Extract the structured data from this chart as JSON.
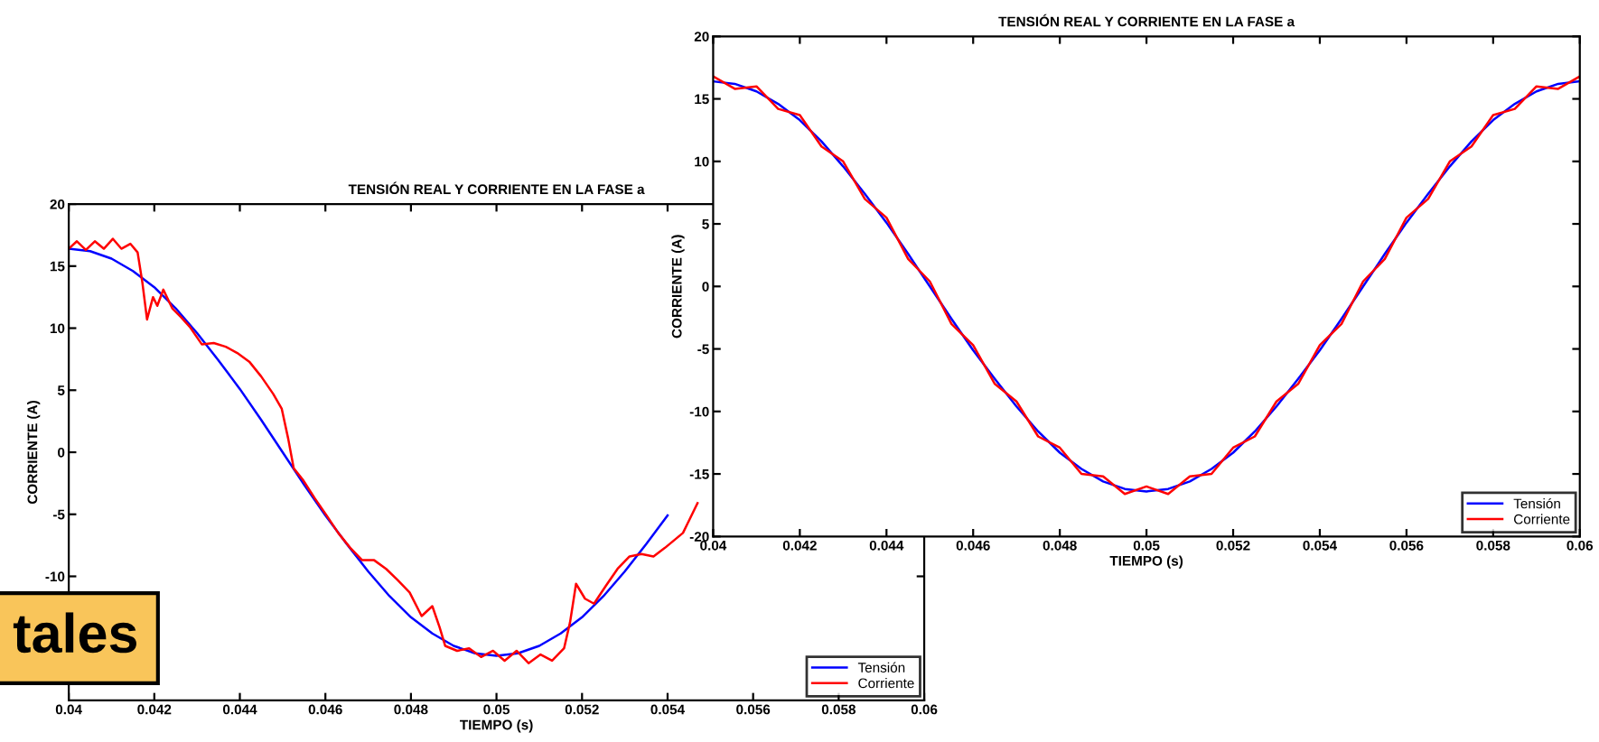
{
  "chart_data": [
    {
      "type": "line",
      "title": "TENSIÓN REAL Y CORRIENTE EN LA FASE a",
      "xlabel": "TIEMPO (s)",
      "ylabel": "CORRIENTE (A)",
      "xlim": [
        0.04,
        0.06
      ],
      "xticks": [
        0.04,
        0.042,
        0.044,
        0.046,
        0.048,
        0.05,
        0.052,
        0.054,
        0.056,
        0.058,
        0.06
      ],
      "ylim": [
        -20,
        20
      ],
      "yticks": [
        -10,
        -5,
        0,
        5,
        10,
        15,
        20
      ],
      "legend": "bottom right",
      "grid": false,
      "annotations": [
        "tales"
      ],
      "series": [
        {
          "name": "Tensión",
          "color": "#0000ff",
          "x": [
            0.04,
            0.0405,
            0.041,
            0.0415,
            0.042,
            0.0425,
            0.043,
            0.0435,
            0.044,
            0.0445,
            0.045,
            0.0455,
            0.046,
            0.0465,
            0.047,
            0.0475,
            0.048,
            0.0485,
            0.049,
            0.0495,
            0.05,
            0.0505,
            0.051,
            0.0515,
            0.052,
            0.0525,
            0.053,
            0.0535,
            0.054
          ],
          "values": [
            16.4,
            16.2,
            15.6,
            14.6,
            13.3,
            11.6,
            9.6,
            7.4,
            5.1,
            2.6,
            0,
            -2.6,
            -5.1,
            -7.4,
            -9.6,
            -11.6,
            -13.3,
            -14.6,
            -15.6,
            -16.2,
            -16.4,
            -16.2,
            -15.6,
            -14.6,
            -13.3,
            -11.6,
            -9.6,
            -7.4,
            -5.1
          ]
        },
        {
          "name": "Corriente",
          "color": "#ff0000",
          "x": [
            0.04,
            0.04019,
            0.0404,
            0.04061,
            0.04082,
            0.04103,
            0.04123,
            0.04144,
            0.04161,
            0.04172,
            0.04183,
            0.04197,
            0.04207,
            0.04221,
            0.04242,
            0.04262,
            0.04283,
            0.04311,
            0.04339,
            0.04367,
            0.04394,
            0.04422,
            0.0445,
            0.04478,
            0.04498,
            0.04513,
            0.04526,
            0.04547,
            0.04575,
            0.04603,
            0.0463,
            0.04658,
            0.04686,
            0.04714,
            0.04742,
            0.04769,
            0.04797,
            0.04825,
            0.0485,
            0.04867,
            0.0488,
            0.04908,
            0.04936,
            0.04964,
            0.04992,
            0.05019,
            0.05047,
            0.05075,
            0.05103,
            0.0513,
            0.05158,
            0.05172,
            0.05186,
            0.05207,
            0.05228,
            0.05255,
            0.05283,
            0.05311,
            0.05339,
            0.05367,
            0.05394,
            0.05436,
            0.0547
          ],
          "values": [
            16.4,
            17.0,
            16.3,
            17.0,
            16.4,
            17.2,
            16.4,
            16.8,
            16.1,
            13.7,
            10.7,
            12.5,
            11.8,
            13.1,
            11.6,
            10.9,
            10.1,
            8.7,
            8.8,
            8.5,
            8.0,
            7.3,
            6.1,
            4.7,
            3.5,
            1.1,
            -1.3,
            -2.2,
            -3.7,
            -5.1,
            -6.5,
            -7.7,
            -8.7,
            -8.7,
            -9.4,
            -10.3,
            -11.3,
            -13.2,
            -12.4,
            -14.1,
            -15.6,
            -16.0,
            -15.8,
            -16.5,
            -16.0,
            -16.8,
            -16.0,
            -17.0,
            -16.3,
            -16.8,
            -15.8,
            -13.7,
            -10.6,
            -11.8,
            -12.2,
            -10.8,
            -9.4,
            -8.4,
            -8.2,
            -8.4,
            -7.7,
            -6.5,
            -4.1
          ]
        }
      ]
    },
    {
      "type": "line",
      "title": "TENSIÓN REAL Y CORRIENTE EN LA FASE a",
      "xlabel": "TIEMPO (s)",
      "ylabel": "CORRIENTE (A)",
      "xlim": [
        0.04,
        0.06
      ],
      "xticks": [
        0.04,
        0.042,
        0.044,
        0.046,
        0.048,
        0.05,
        0.052,
        0.054,
        0.056,
        0.058,
        0.06
      ],
      "ylim": [
        -20,
        20
      ],
      "yticks": [
        -20,
        -15,
        -10,
        -5,
        0,
        5,
        10,
        15,
        20
      ],
      "legend": "bottom right",
      "grid": false,
      "x": [
        0.04,
        0.0405,
        0.041,
        0.0415,
        0.042,
        0.0425,
        0.043,
        0.0435,
        0.044,
        0.0445,
        0.045,
        0.0455,
        0.046,
        0.0465,
        0.047,
        0.0475,
        0.048,
        0.0485,
        0.049,
        0.0495,
        0.05,
        0.0505,
        0.051,
        0.0515,
        0.052,
        0.0525,
        0.053,
        0.0535,
        0.054,
        0.0545,
        0.055,
        0.0555,
        0.056,
        0.0565,
        0.057,
        0.0575,
        0.058,
        0.0585,
        0.059,
        0.0595,
        0.06
      ],
      "series": [
        {
          "name": "Tensión",
          "color": "#0000ff",
          "values": [
            16.4,
            16.2,
            15.6,
            14.6,
            13.3,
            11.6,
            9.6,
            7.4,
            5.1,
            2.6,
            0,
            -2.6,
            -5.1,
            -7.4,
            -9.6,
            -11.6,
            -13.3,
            -14.6,
            -15.6,
            -16.2,
            -16.4,
            -16.2,
            -15.6,
            -14.6,
            -13.3,
            -11.6,
            -9.6,
            -7.4,
            -5.1,
            -2.6,
            0,
            2.6,
            5.1,
            7.4,
            9.6,
            11.6,
            13.3,
            14.6,
            15.6,
            16.2,
            16.4
          ]
        },
        {
          "name": "Corriente",
          "color": "#ff0000",
          "values": [
            16.8,
            15.8,
            16.0,
            14.2,
            13.7,
            11.2,
            10.0,
            7.0,
            5.5,
            2.2,
            0.4,
            -3.0,
            -4.7,
            -7.8,
            -9.2,
            -12.0,
            -12.9,
            -15.0,
            -15.2,
            -16.6,
            -16.0,
            -16.6,
            -15.2,
            -15.0,
            -12.9,
            -12.0,
            -9.2,
            -7.8,
            -4.7,
            -3.0,
            0.4,
            2.2,
            5.5,
            7.0,
            10.0,
            11.2,
            13.7,
            14.2,
            16.0,
            15.8,
            16.8
          ]
        }
      ]
    }
  ]
}
